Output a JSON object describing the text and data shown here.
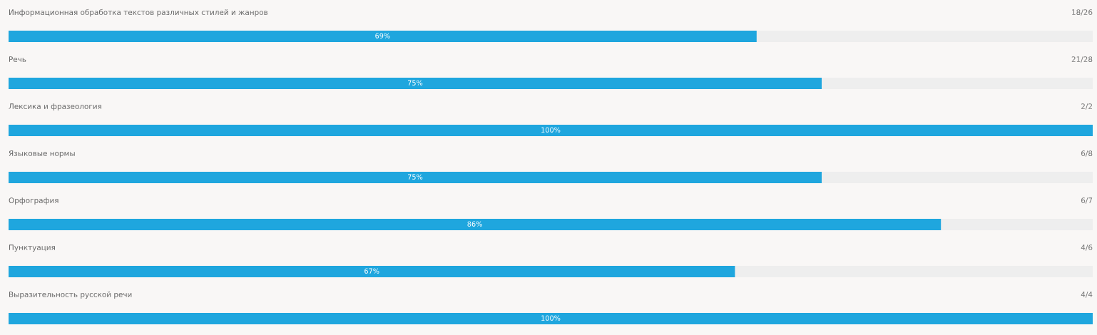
{
  "chart_data": {
    "type": "bar",
    "orientation": "horizontal",
    "categories": [
      "Информационная обработка текстов различных стилей и жанров",
      "Речь",
      "Лексика и фразеология",
      "Языковые нормы",
      "Орфография",
      "Пунктуация",
      "Выразительность русской речи"
    ],
    "values": [
      69,
      75,
      100,
      75,
      86,
      67,
      100
    ],
    "value_labels": [
      "69%",
      "75%",
      "100%",
      "75%",
      "86%",
      "67%",
      "100%"
    ],
    "color": "#1fa6de",
    "xlim": [
      0,
      100
    ],
    "annotations": [
      "18/26",
      "21/28",
      "2/2",
      "6/8",
      "6/7",
      "4/6",
      "4/4"
    ]
  }
}
